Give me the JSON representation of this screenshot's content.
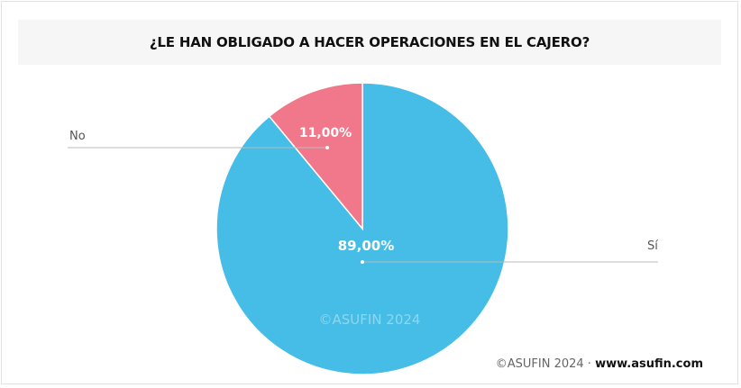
{
  "chart_data": {
    "type": "pie",
    "title": "¿LE HAN OBLIGADO A HACER OPERACIONES EN EL CAJERO?",
    "slices": [
      {
        "label": "Sí",
        "value": 89.0,
        "value_label": "89,00%",
        "color": "#45BDE6"
      },
      {
        "label": "No",
        "value": 11.0,
        "value_label": "11,00%",
        "color": "#F0788A"
      }
    ],
    "watermark": "©ASUFIN 2024"
  },
  "footer": {
    "copyright": "©ASUFIN 2024 ·",
    "website": "www.asufin.com"
  }
}
